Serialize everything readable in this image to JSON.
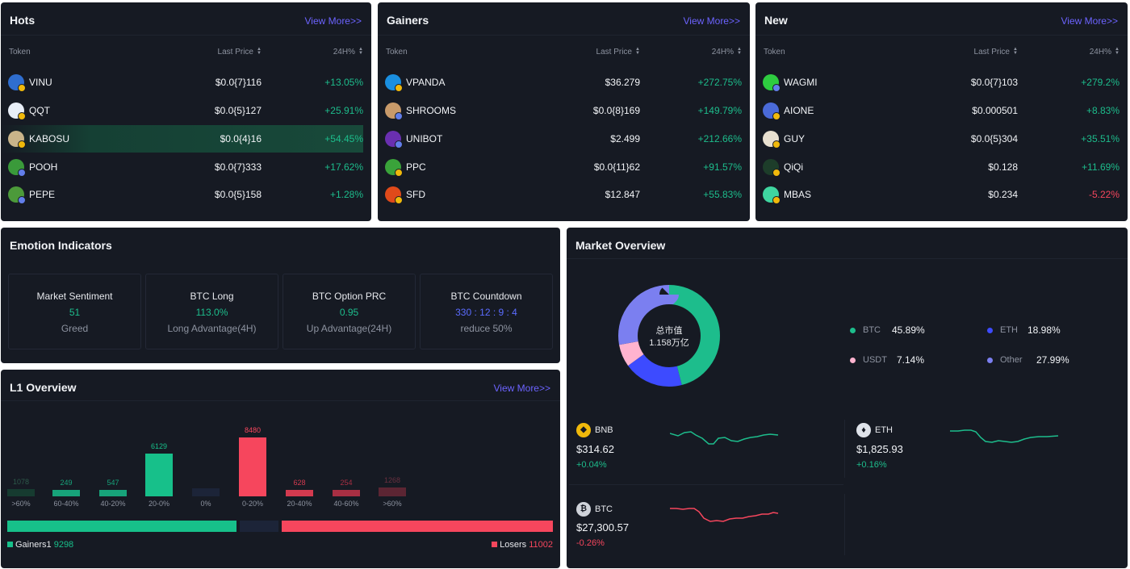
{
  "hots": {
    "title": "Hots",
    "view_more": "View More>>",
    "headers": {
      "token": "Token",
      "price": "Last Price",
      "change": "24H%"
    },
    "rows": [
      {
        "name": "VINU",
        "price": "$0.0{7}116",
        "change": "+13.05%",
        "dir": "up",
        "color": "#2f6ecf",
        "badge": "bnb"
      },
      {
        "name": "QQT",
        "price": "$0.0{5}127",
        "change": "+25.91%",
        "dir": "up",
        "color": "#e8eef7",
        "badge": "bnb"
      },
      {
        "name": "KABOSU",
        "price": "$0.0{4}16",
        "change": "+54.45%",
        "dir": "up",
        "color": "#c9b48a",
        "badge": "bnb"
      },
      {
        "name": "POOH",
        "price": "$0.0{7}333",
        "change": "+17.62%",
        "dir": "up",
        "color": "#3a9a3a",
        "badge": "eth"
      },
      {
        "name": "PEPE",
        "price": "$0.0{5}158",
        "change": "+1.28%",
        "dir": "up",
        "color": "#4c9a3a",
        "badge": "eth"
      }
    ]
  },
  "gainers": {
    "title": "Gainers",
    "view_more": "View More>>",
    "headers": {
      "token": "Token",
      "price": "Last Price",
      "change": "24H%"
    },
    "rows": [
      {
        "name": "VPANDA",
        "price": "$36.279",
        "change": "+272.75%",
        "dir": "up",
        "color": "#1a8fe0",
        "badge": "bnb"
      },
      {
        "name": "SHROOMS",
        "price": "$0.0{8}169",
        "change": "+149.79%",
        "dir": "up",
        "color": "#c89a6a",
        "badge": "eth"
      },
      {
        "name": "UNIBOT",
        "price": "$2.499",
        "change": "+212.66%",
        "dir": "up",
        "color": "#6a2fb0",
        "badge": "eth"
      },
      {
        "name": "PPC",
        "price": "$0.0{11}62",
        "change": "+91.57%",
        "dir": "up",
        "color": "#3aa33a",
        "badge": "bnb"
      },
      {
        "name": "SFD",
        "price": "$12.847",
        "change": "+55.83%",
        "dir": "up",
        "color": "#e04a1a",
        "badge": "bnb"
      }
    ]
  },
  "new": {
    "title": "New",
    "view_more": "View More>>",
    "headers": {
      "token": "Token",
      "price": "Last Price",
      "change": "24H%"
    },
    "rows": [
      {
        "name": "WAGMI",
        "price": "$0.0{7}103",
        "change": "+279.2%",
        "dir": "up",
        "color": "#2ecc40",
        "badge": "eth"
      },
      {
        "name": "AIONE",
        "price": "$0.000501",
        "change": "+8.83%",
        "dir": "up",
        "color": "#4a6ad8",
        "badge": "bnb"
      },
      {
        "name": "GUY",
        "price": "$0.0{5}304",
        "change": "+35.51%",
        "dir": "up",
        "color": "#e8e0d0",
        "badge": "bnb"
      },
      {
        "name": "QiQi",
        "price": "$0.128",
        "change": "+11.69%",
        "dir": "up",
        "color": "#1d3d2a",
        "badge": "bnb"
      },
      {
        "name": "MBAS",
        "price": "$0.234",
        "change": "-5.22%",
        "dir": "down",
        "color": "#3fd6a0",
        "badge": "bnb"
      }
    ]
  },
  "emotion": {
    "title": "Emotion Indicators",
    "cards": [
      {
        "label": "Market Sentiment",
        "value": "51",
        "sub": "Greed",
        "value_color": "#1dbd8c"
      },
      {
        "label": "BTC Long",
        "value": "113.0%",
        "sub": "Long Advantage(4H)",
        "value_color": "#1dbd8c"
      },
      {
        "label": "BTC Option PRC",
        "value": "0.95",
        "sub": "Up Advantage(24H)",
        "value_color": "#1dbd8c"
      },
      {
        "label": "BTC Countdown",
        "value": "330 : 12 : 9 : 4",
        "sub": "reduce 50%",
        "value_color": "#5b6cff"
      }
    ]
  },
  "l1": {
    "title": "L1 Overview",
    "view_more": "View More>>",
    "gainers_label": "Gainers1",
    "gainers_count": "9298",
    "losers_label": "Losers",
    "losers_count": "11002",
    "gainers_total": 9298,
    "losers_total": 11002
  },
  "chart_data": {
    "type": "bar",
    "categories": [
      ">60%",
      "60-40%",
      "40-20%",
      "20-0%",
      "0%",
      "0-20%",
      "20-40%",
      "40-60%",
      ">60%"
    ],
    "values": [
      1078,
      249,
      547,
      6129,
      1120,
      8480,
      628,
      254,
      1268
    ],
    "value_labels": [
      "1078",
      "249",
      "547",
      "6129",
      "",
      "8480",
      "628",
      "254",
      "1268"
    ],
    "colors": [
      "#163b30",
      "#17a37a",
      "#17a37a",
      "#17c08a",
      "#1c2438",
      "#f6465d",
      "#d33a4f",
      "#a82f43",
      "#5c2533"
    ],
    "label_colors": [
      "#2d5a4a",
      "#17a37a",
      "#17a37a",
      "#17c08a",
      "#2b3246",
      "#f6465d",
      "#d33a4f",
      "#a82f43",
      "#6a3040"
    ]
  },
  "market": {
    "title": "Market Overview",
    "center_label": "总市值",
    "center_value": "1.158万亿",
    "legend": [
      {
        "name": "BTC",
        "value": "45.89%",
        "color": "#1dbd8c",
        "share": 45.89
      },
      {
        "name": "ETH",
        "value": "18.98%",
        "color": "#3d4bff",
        "share": 18.98
      },
      {
        "name": "USDT",
        "value": "7.14%",
        "color": "#ffb3cf",
        "share": 7.14
      },
      {
        "name": "Other",
        "value": "27.99%",
        "color": "#7b7ff0",
        "share": 27.99
      }
    ],
    "coins": [
      {
        "symbol": "BNB",
        "price": "$314.62",
        "change": "+0.04%",
        "dir": "up",
        "icon_color": "#f0b90b"
      },
      {
        "symbol": "ETH",
        "price": "$1,825.93",
        "change": "+0.16%",
        "dir": "up",
        "icon_color": "#dfe3ea"
      },
      {
        "symbol": "BTC",
        "price": "$27,300.57",
        "change": "-0.26%",
        "dir": "down",
        "icon_color": "#cfd3da"
      }
    ]
  }
}
